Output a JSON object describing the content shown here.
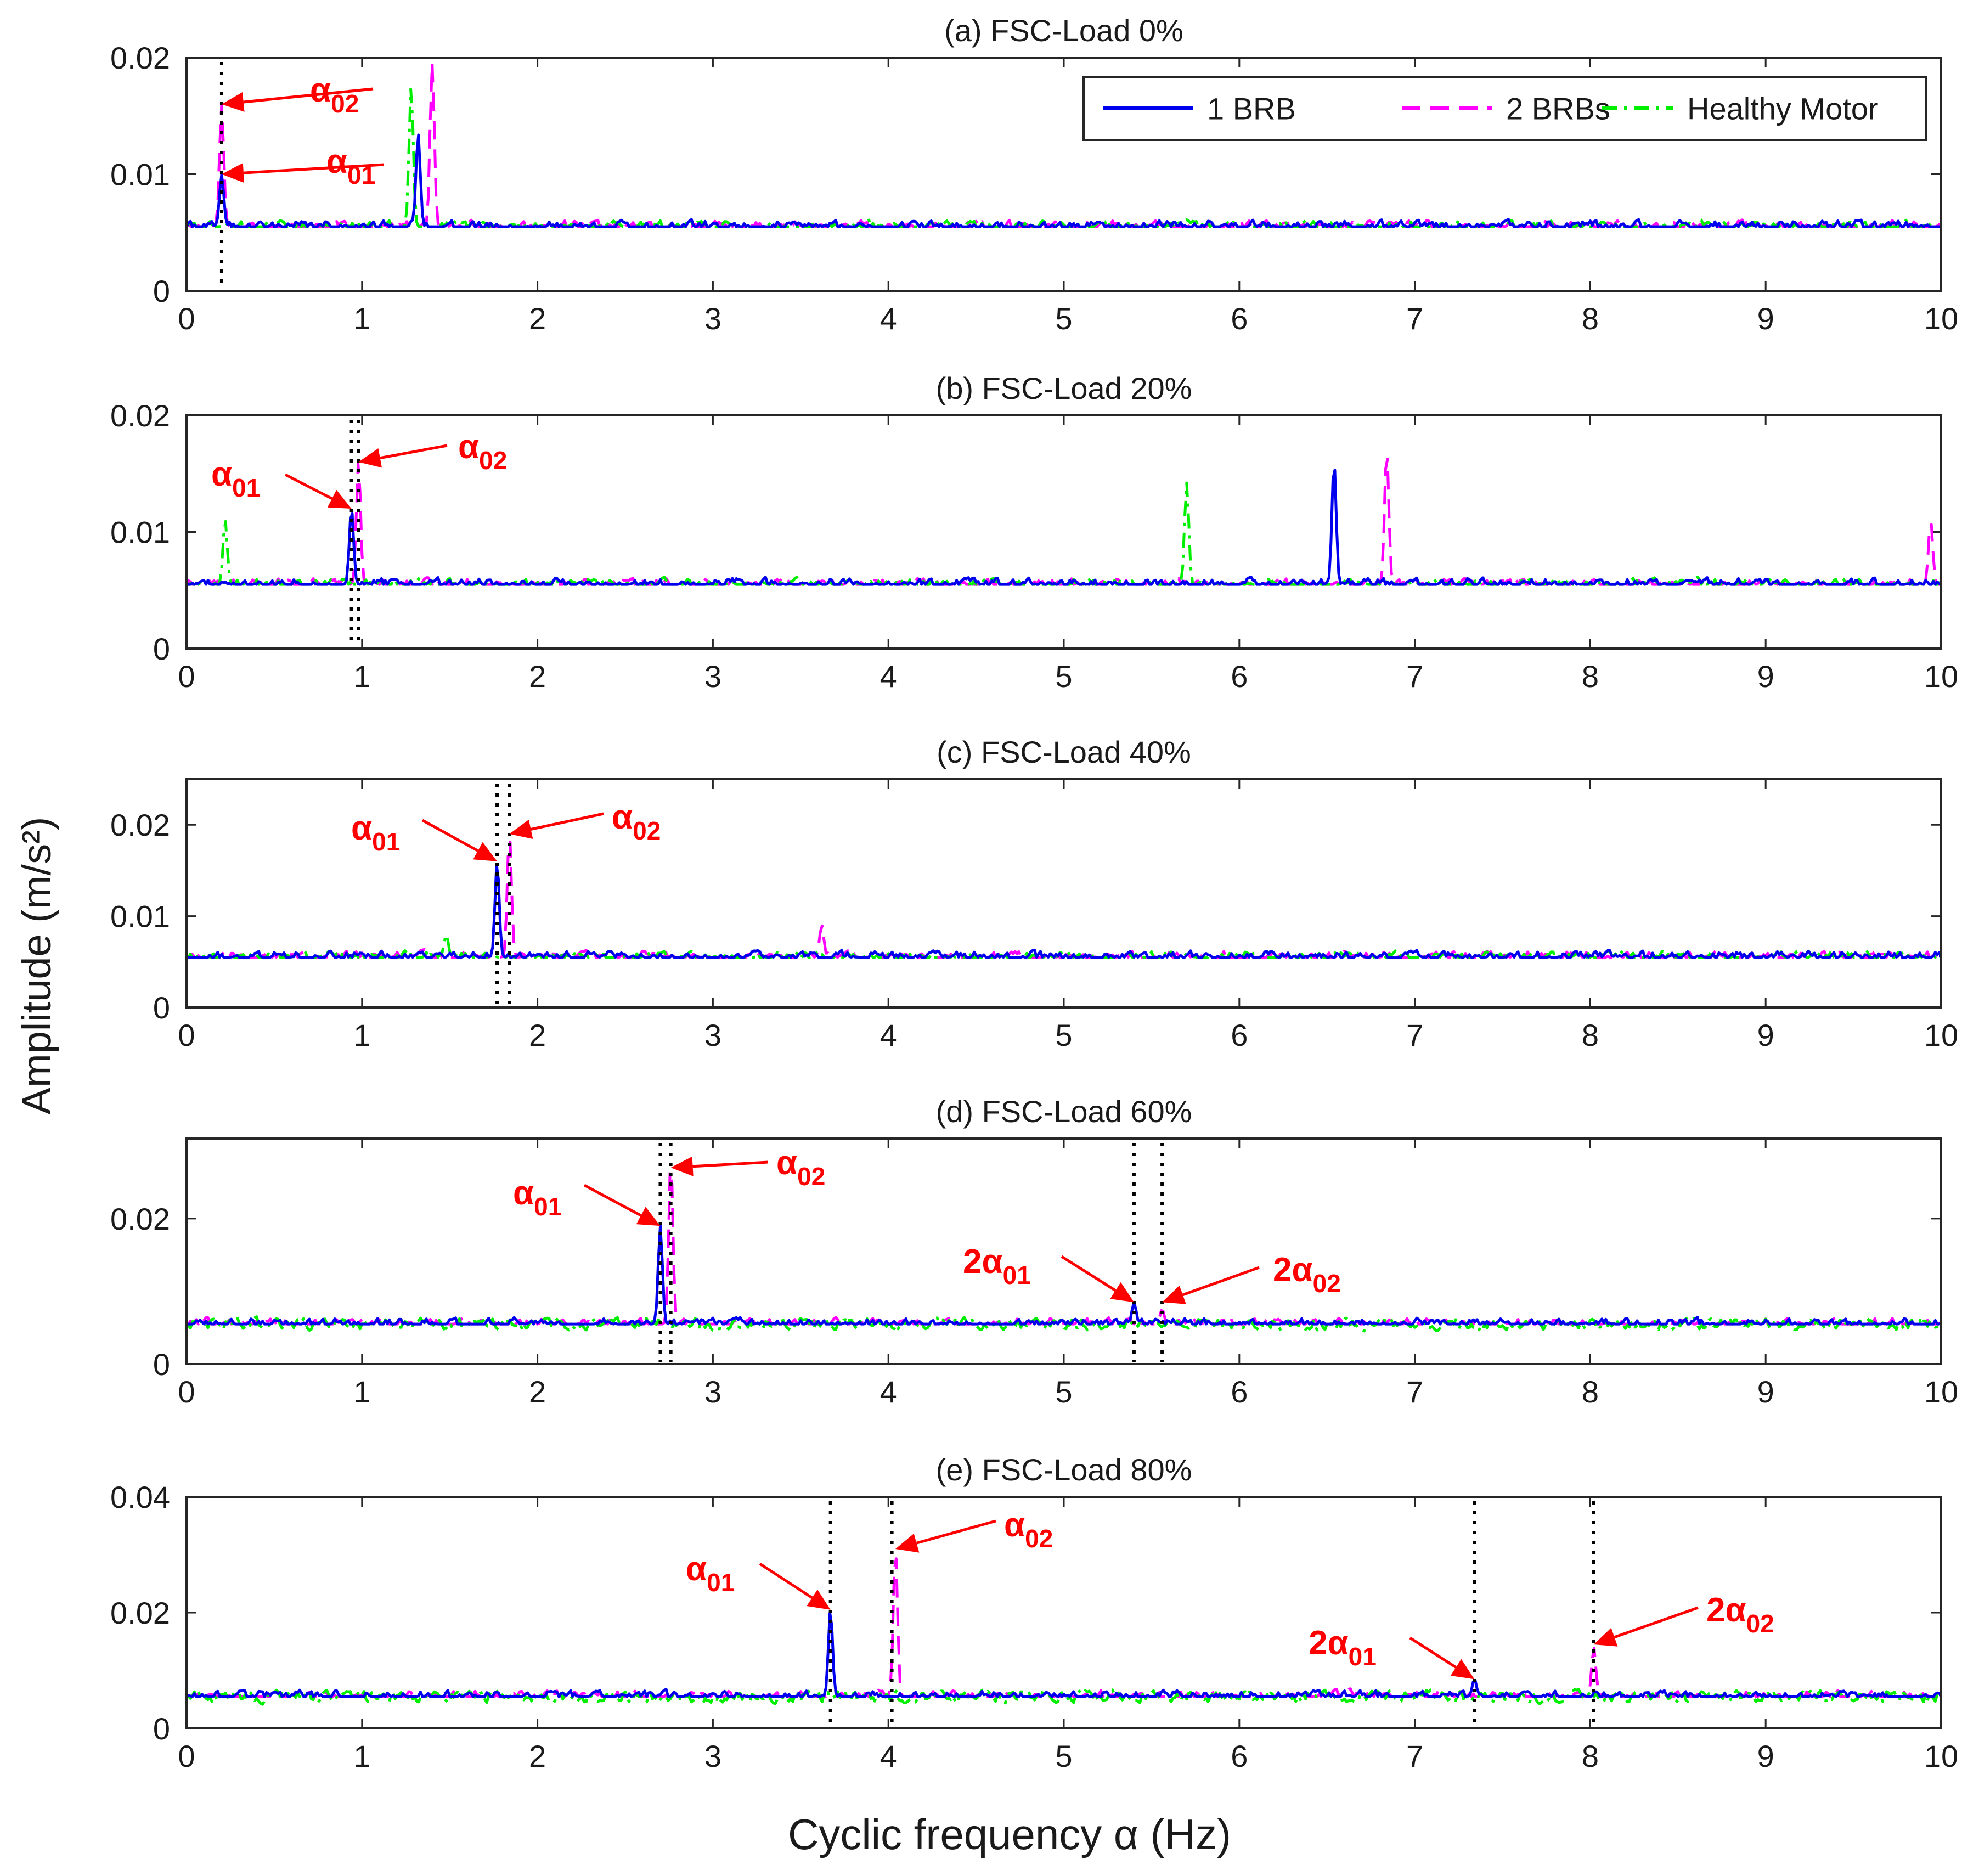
{
  "chart_data": {
    "type": "line",
    "ylabel": "Amplitude (m/s²)",
    "xlabel": "Cyclic frequency α (Hz)",
    "xlim": [
      0,
      10
    ],
    "xticks": [
      "0",
      "1",
      "2",
      "3",
      "4",
      "5",
      "6",
      "7",
      "8",
      "9",
      "10"
    ],
    "legend": {
      "placement": "top-right of panel (a)",
      "entries": [
        {
          "name": "1 BRB",
          "color": "#0000ee",
          "style": "solid"
        },
        {
          "name": "2 BRBs",
          "color": "#ff00ff",
          "style": "dashed"
        },
        {
          "name": "Healthy Motor",
          "color": "#00ee00",
          "style": "dash-dot"
        }
      ]
    },
    "panels": [
      {
        "title": "(a) FSC-Load 0%",
        "ylim": [
          0,
          0.02
        ],
        "yticks": [
          "0",
          "0.01",
          "0.02"
        ],
        "baseline": 0.0055,
        "markers": [
          0.2
        ],
        "peaks": {
          "one_brb": [
            [
              0.2,
              0.01
            ],
            [
              1.32,
              0.0135
            ]
          ],
          "two_brbs": [
            [
              0.2,
              0.016
            ],
            [
              1.4,
              0.0195
            ]
          ],
          "healthy": [
            [
              1.28,
              0.0175
            ]
          ]
        },
        "annotations": [
          {
            "label": "α02",
            "x": 0.2,
            "y": 0.016
          },
          {
            "label": "α01",
            "x": 0.2,
            "y": 0.01
          }
        ]
      },
      {
        "title": "(b) FSC-Load 20%",
        "ylim": [
          0,
          0.02
        ],
        "yticks": [
          "0",
          "0.01",
          "0.02"
        ],
        "baseline": 0.0055,
        "markers": [
          0.94,
          0.98
        ],
        "peaks": {
          "one_brb": [
            [
              0.94,
              0.012
            ],
            [
              6.54,
              0.016
            ]
          ],
          "two_brbs": [
            [
              0.98,
              0.016
            ],
            [
              6.84,
              0.017
            ],
            [
              9.94,
              0.011
            ]
          ],
          "healthy": [
            [
              0.22,
              0.011
            ],
            [
              5.7,
              0.0142
            ]
          ]
        },
        "annotations": [
          {
            "label": "α01",
            "x": 0.94,
            "y": 0.012
          },
          {
            "label": "α02",
            "x": 0.98,
            "y": 0.016
          }
        ]
      },
      {
        "title": "(c) FSC-Load 40%",
        "ylim": [
          0,
          0.025
        ],
        "yticks": [
          "0",
          "0.01",
          "0.02"
        ],
        "baseline": 0.0055,
        "markers": [
          1.77,
          1.84
        ],
        "peaks": {
          "one_brb": [
            [
              1.77,
              0.016
            ]
          ],
          "two_brbs": [
            [
              1.84,
              0.019
            ],
            [
              3.62,
              0.009
            ]
          ],
          "healthy": [
            [
              1.48,
              0.008
            ]
          ]
        },
        "annotations": [
          {
            "label": "α01",
            "x": 1.77,
            "y": 0.016
          },
          {
            "label": "α02",
            "x": 1.84,
            "y": 0.019
          }
        ]
      },
      {
        "title": "(d) FSC-Load 60%",
        "ylim": [
          0,
          0.031
        ],
        "yticks": [
          "0",
          "0.02"
        ],
        "baseline": 0.0055,
        "markers": [
          2.7,
          2.76,
          5.4,
          5.56
        ],
        "peaks": {
          "one_brb": [
            [
              2.7,
              0.019
            ],
            [
              5.4,
              0.0085
            ]
          ],
          "two_brbs": [
            [
              2.76,
              0.028
            ],
            [
              5.56,
              0.0075
            ]
          ],
          "healthy": []
        },
        "annotations": [
          {
            "label": "α01",
            "x": 2.7,
            "y": 0.019
          },
          {
            "label": "α02",
            "x": 2.76,
            "y": 0.027
          },
          {
            "label": "2α01",
            "x": 5.4,
            "y": 0.0085
          },
          {
            "label": "2α02",
            "x": 5.56,
            "y": 0.0085
          }
        ]
      },
      {
        "title": "(e) FSC-Load 80%",
        "ylim": [
          0,
          0.04
        ],
        "yticks": [
          "0",
          "0.02",
          "0.04"
        ],
        "baseline": 0.0055,
        "markers": [
          3.67,
          4.02,
          7.34,
          8.02
        ],
        "peaks": {
          "one_brb": [
            [
              3.67,
              0.0205
            ],
            [
              7.34,
              0.0085
            ]
          ],
          "two_brbs": [
            [
              4.04,
              0.031
            ],
            [
              8.02,
              0.014
            ]
          ],
          "healthy": []
        },
        "annotations": [
          {
            "label": "α01",
            "x": 3.67,
            "y": 0.0205
          },
          {
            "label": "α02",
            "x": 4.04,
            "y": 0.031
          },
          {
            "label": "2α01",
            "x": 7.34,
            "y": 0.0085
          },
          {
            "label": "2α02",
            "x": 8.02,
            "y": 0.0145
          }
        ]
      }
    ]
  },
  "colors": {
    "one_brb": "#0000ee",
    "two_brbs": "#ff00ff",
    "healthy": "#00ee00",
    "annotation": "#ff0000",
    "marker": "#000000"
  }
}
